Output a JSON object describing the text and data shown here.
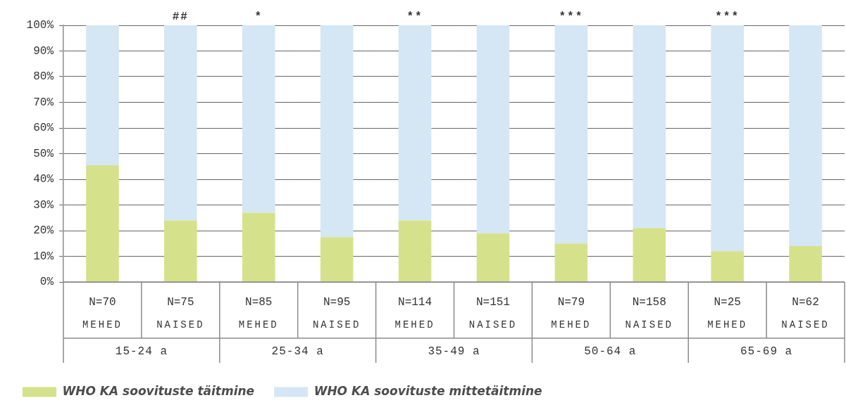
{
  "chart_data": {
    "type": "bar",
    "stacked": true,
    "categories": [
      "N=70\nMEHED",
      "N=75\nNAISED",
      "N=85\nMEHED",
      "N=95\nNAISED",
      "N=114\nMEHED",
      "N=151\nNAISED",
      "N=79\nMEHED",
      "N=158\nNAISED",
      "N=25\nMEHED",
      "N=62\nNAISED"
    ],
    "series": [
      {
        "name": "WHO KA soovituste täitmine",
        "color": "#d6e28b",
        "values": [
          45.5,
          24,
          27,
          17.5,
          24,
          19,
          15,
          21,
          12,
          14
        ]
      },
      {
        "name": "WHO KA soovituste mittetäitmine",
        "color": "#d5e6f5",
        "values": [
          54.5,
          76,
          73,
          82.5,
          76,
          81,
          85,
          79,
          88,
          86
        ]
      }
    ],
    "ylim": [
      0,
      100
    ],
    "yticks": [
      {
        "value": 0,
        "label": "0%"
      },
      {
        "value": 10,
        "label": "10%"
      },
      {
        "value": 20,
        "label": "20%"
      },
      {
        "value": 30,
        "label": "30%"
      },
      {
        "value": 40,
        "label": "40%"
      },
      {
        "value": 50,
        "label": "50%"
      },
      {
        "value": 60,
        "label": "60%"
      },
      {
        "value": 70,
        "label": "70%"
      },
      {
        "value": 80,
        "label": "80%"
      },
      {
        "value": 90,
        "label": "90%"
      },
      {
        "value": 100,
        "label": "100%"
      }
    ],
    "grid": "y",
    "legend": "bottom",
    "annotations": [
      {
        "text": "##",
        "x": "N=75\nNAISED",
        "y": 100
      },
      {
        "text": "*",
        "x": "N=85\nMEHED",
        "y": 100
      },
      {
        "text": "**",
        "x": "N=114\nMEHED",
        "y": 100
      },
      {
        "text": "***",
        "x": "N=79\nMEHED",
        "y": 100
      },
      {
        "text": "***",
        "x": "N=25\nMEHED",
        "y": 100
      },
      "15-24 a",
      "25-34 a",
      "35-49 a",
      "50-64 a",
      "65-69 a"
    ]
  }
}
